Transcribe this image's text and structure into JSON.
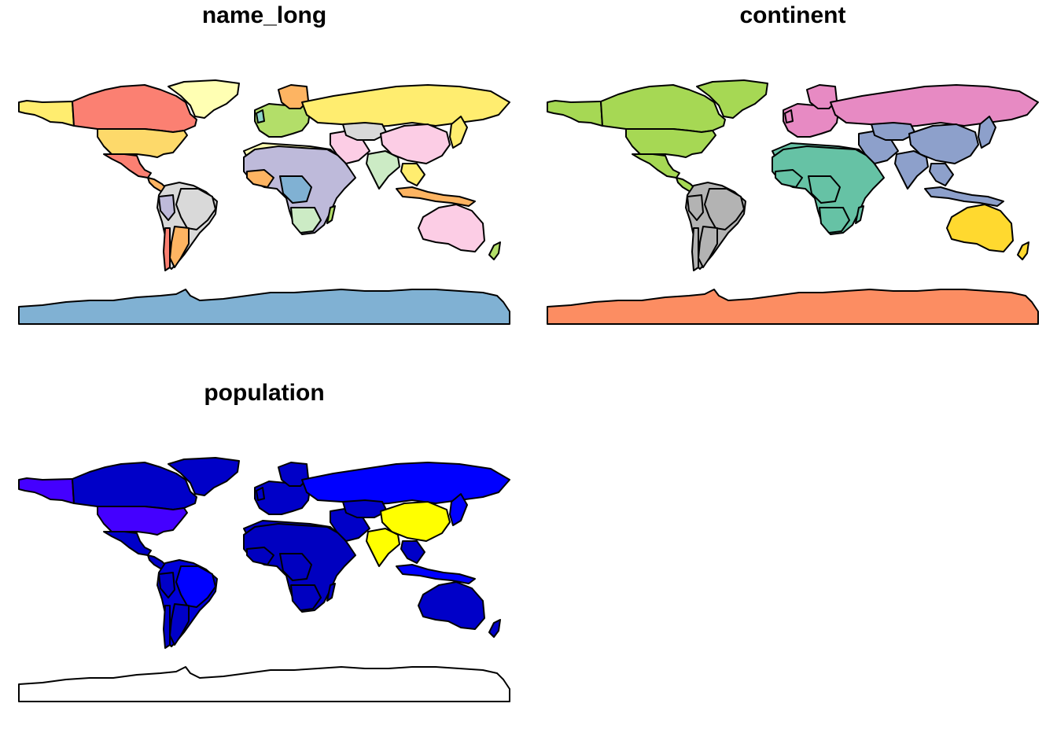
{
  "panels": [
    {
      "title": "name_long",
      "fills": {
        "north_america": "#f4a582",
        "canada": "#fb8072",
        "usa": "#fdd96a",
        "alaska": "#ffed6f",
        "greenland": "#ffffb3",
        "mexico": "#fb8072",
        "central_america": "#fdb462",
        "south_america": "#d9d9d9",
        "brazil": "#d9d9d9",
        "argentina": "#fdb462",
        "peru": "#bebada",
        "chile": "#fb8072",
        "europe": "#b3de69",
        "scandinavia": "#fdb462",
        "uk": "#8dd3c7",
        "africa": "#bebada",
        "north_africa": "#ffffb3",
        "west_africa": "#fdb462",
        "central_africa": "#80b1d3",
        "south_africa": "#ccebc5",
        "madagascar": "#b3de69",
        "middle_east": "#fccde5",
        "russia": "#ffed6f",
        "kazakhstan": "#d9d9d9",
        "china": "#fccde5",
        "india": "#ccebc5",
        "southeast_asia": "#ffed6f",
        "japan": "#ffed6f",
        "indonesia": "#fdb462",
        "australia": "#fccde5",
        "new_zealand": "#b3de69",
        "antarctica": "#80b1d3"
      }
    },
    {
      "title": "continent",
      "fills": {
        "north_america": "#a6d854",
        "canada": "#a6d854",
        "usa": "#a6d854",
        "alaska": "#a6d854",
        "greenland": "#a6d854",
        "mexico": "#a6d854",
        "central_america": "#a6d854",
        "south_america": "#b3b3b3",
        "brazil": "#b3b3b3",
        "argentina": "#b3b3b3",
        "peru": "#b3b3b3",
        "chile": "#b3b3b3",
        "europe": "#e78ac3",
        "scandinavia": "#e78ac3",
        "uk": "#e78ac3",
        "africa": "#66c2a5",
        "north_africa": "#66c2a5",
        "west_africa": "#66c2a5",
        "central_africa": "#66c2a5",
        "south_africa": "#66c2a5",
        "madagascar": "#66c2a5",
        "middle_east": "#8da0cb",
        "russia": "#e78ac3",
        "kazakhstan": "#8da0cb",
        "china": "#8da0cb",
        "india": "#8da0cb",
        "southeast_asia": "#8da0cb",
        "japan": "#8da0cb",
        "indonesia": "#8da0cb",
        "australia": "#ffd92f",
        "new_zealand": "#ffd92f",
        "antarctica": "#fc8d62"
      }
    },
    {
      "title": "population",
      "fills": {
        "north_america": "#0000c8",
        "canada": "#0000c8",
        "usa": "#4400ff",
        "alaska": "#4400ff",
        "greenland": "#0000c8",
        "mexico": "#0000c8",
        "central_america": "#0000c8",
        "south_america": "#0000d8",
        "brazil": "#0000ff",
        "argentina": "#0000c8",
        "peru": "#0000c8",
        "chile": "#0000c8",
        "europe": "#0000c8",
        "scandinavia": "#0000c8",
        "uk": "#0000c8",
        "africa": "#0000c0",
        "north_africa": "#0000c8",
        "west_africa": "#0000c0",
        "central_africa": "#0000c0",
        "south_africa": "#0000c0",
        "madagascar": "#0000c8",
        "middle_east": "#0000c8",
        "russia": "#0000ff",
        "kazakhstan": "#0000c8",
        "china": "#ffff00",
        "india": "#ffff00",
        "southeast_asia": "#0000c8",
        "japan": "#0000ff",
        "indonesia": "#0000ff",
        "australia": "#0000c8",
        "new_zealand": "#0000c8",
        "antarctica": "#ffffff"
      }
    }
  ]
}
